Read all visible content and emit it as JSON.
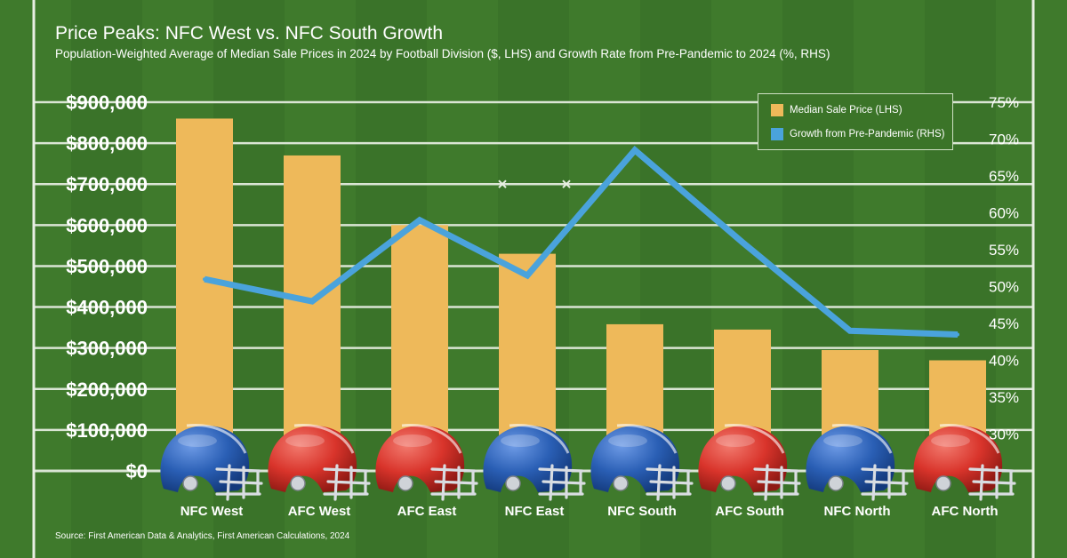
{
  "title": "Price Peaks: NFC West vs. NFC South Growth",
  "subtitle": "Population-Weighted Average of Median Sale Prices in 2024 by Football Division ($, LHS) and Growth Rate from Pre-Pandemic to 2024 (%, RHS)",
  "source": "Source: First American Data & Analytics, First American Calculations, 2024",
  "colors": {
    "background": "#3f7a2c",
    "bar": "#eeb95a",
    "line": "#4aa3dc",
    "text": "#ffffff",
    "helmet_nfc": "#2a5fb5",
    "helmet_afc": "#d9342b"
  },
  "legend": [
    {
      "label": "Median Sale Price (LHS)",
      "color": "#eeb95a"
    },
    {
      "label": "Growth from Pre-Pandemic (RHS)",
      "color": "#4aa3dc"
    }
  ],
  "chart_data": {
    "type": "bar",
    "categories": [
      "NFC West",
      "AFC West",
      "AFC East",
      "NFC East",
      "NFC South",
      "AFC South",
      "NFC North",
      "AFC North"
    ],
    "conference": [
      "NFC",
      "AFC",
      "AFC",
      "NFC",
      "NFC",
      "AFC",
      "NFC",
      "AFC"
    ],
    "series": [
      {
        "name": "Median Sale Price (LHS)",
        "type": "bar",
        "axis": "left",
        "values": [
          860000,
          770000,
          600000,
          530000,
          358000,
          345000,
          295000,
          270000
        ]
      },
      {
        "name": "Growth from Pre-Pandemic (RHS)",
        "type": "line",
        "axis": "right",
        "values": [
          51,
          48,
          59,
          51.5,
          68.5,
          56,
          44,
          43.5
        ]
      }
    ],
    "ylim_left": [
      0,
      900000
    ],
    "yticks_left": [
      "$0",
      "$100,000",
      "$200,000",
      "$300,000",
      "$400,000",
      "$500,000",
      "$600,000",
      "$700,000",
      "$800,000",
      "$900,000"
    ],
    "ylim_right": [
      25,
      75
    ],
    "yticks_right": [
      "30%",
      "35%",
      "40%",
      "45%",
      "50%",
      "55%",
      "60%",
      "65%",
      "70%",
      "75%"
    ],
    "legend_position": "top-right",
    "grid": true
  }
}
